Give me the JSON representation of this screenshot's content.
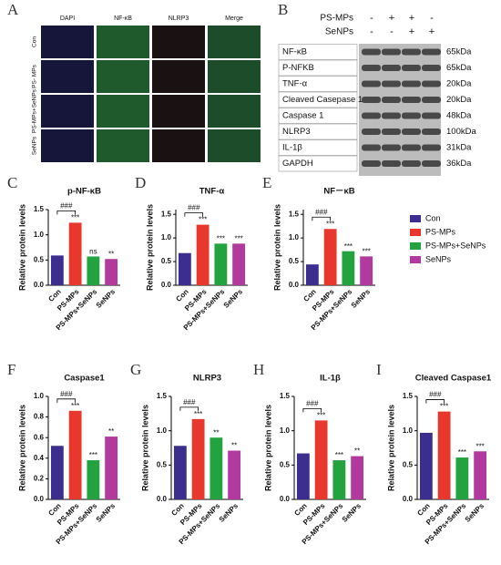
{
  "panel_a": {
    "label": "A",
    "columns": [
      "DAPI",
      "NF-κB",
      "NLRP3",
      "Merge"
    ],
    "rows": [
      "Con",
      "PS- MPs",
      "PS-MPs+SeNPs",
      "SeNPs"
    ]
  },
  "panel_b": {
    "label": "B",
    "treatments": [
      {
        "name": "PS-MPs",
        "signs": [
          "-",
          "+",
          "+",
          "-"
        ]
      },
      {
        "name": "SeNPs",
        "signs": [
          "-",
          "-",
          "+",
          "+"
        ]
      }
    ],
    "proteins": [
      {
        "name": "NF-κB",
        "size": "65kDa"
      },
      {
        "name": "P-NFKB",
        "size": "65kDa"
      },
      {
        "name": "TNF-α",
        "size": "20kDa"
      },
      {
        "name": "Cleaved Casepase 1",
        "size": "20kDa"
      },
      {
        "name": "Caspase 1",
        "size": "48kDa"
      },
      {
        "name": "NLRP3",
        "size": "100kDa"
      },
      {
        "name": "IL-1β",
        "size": "31kDa"
      },
      {
        "name": "GAPDH",
        "size": "36kDa"
      }
    ]
  },
  "chart_data": [
    {
      "type": "bar",
      "panel": "C",
      "title": "p-NF-κB",
      "y_label": "Relative protein levels",
      "categories": [
        "Con",
        "PS-MPs",
        "PS-MPs+SeNPs",
        "SeNPs"
      ],
      "values": [
        0.59,
        1.24,
        0.57,
        0.52
      ],
      "colors": [
        "#3b2e8e",
        "#e8372c",
        "#22a33f",
        "#b23a9f"
      ],
      "significance": [
        null,
        "***",
        "ns",
        "**"
      ],
      "comparison": "###",
      "ylim": [
        0,
        1.5
      ],
      "yticks": [
        {
          "value": 0,
          "label": "0.0"
        },
        {
          "value": 0.5,
          "label": "0.5"
        },
        {
          "value": 1,
          "label": "1.0"
        },
        {
          "value": 1.5,
          "label": "1.5"
        }
      ],
      "legend": false
    },
    {
      "type": "bar",
      "panel": "D",
      "title": "TNF-α",
      "y_label": "Relative protein levels",
      "categories": [
        "Con",
        "PS-MPs",
        "PS-MPs+SeNPs",
        "SeNPs"
      ],
      "values": [
        0.68,
        1.28,
        0.88,
        0.88
      ],
      "colors": [
        "#3b2e8e",
        "#e8372c",
        "#22a33f",
        "#b23a9f"
      ],
      "significance": [
        null,
        "***",
        "***",
        "***"
      ],
      "comparison": "###",
      "ylim": [
        0,
        1.6
      ],
      "yticks": [
        {
          "value": 0,
          "label": "0.0"
        },
        {
          "value": 0.5,
          "label": "0.5"
        },
        {
          "value": 1,
          "label": "1.0"
        },
        {
          "value": 1.5,
          "label": "1.5"
        }
      ],
      "legend": false
    },
    {
      "type": "bar",
      "panel": "E",
      "title": "NF－κB",
      "y_label": "Relative protein levels",
      "categories": [
        "Con",
        "PS-MPs",
        "PS-MPs+SeNPs",
        "SeNPs"
      ],
      "values": [
        0.44,
        1.19,
        0.72,
        0.61
      ],
      "colors": [
        "#3b2e8e",
        "#e8372c",
        "#22a33f",
        "#b23a9f"
      ],
      "significance": [
        null,
        "***",
        "***",
        "***"
      ],
      "comparison": "###",
      "ylim": [
        0,
        1.6
      ],
      "yticks": [
        {
          "value": 0,
          "label": "0.0"
        },
        {
          "value": 0.5,
          "label": "0.5"
        },
        {
          "value": 1,
          "label": "1.0"
        },
        {
          "value": 1.5,
          "label": "1.5"
        }
      ],
      "legend": true
    },
    {
      "type": "bar",
      "panel": "F",
      "title": "Caspase1",
      "y_label": "Relative protein levels",
      "categories": [
        "Con",
        "PS-MPs",
        "PS-MPs+SeNPs",
        "SeNPs"
      ],
      "values": [
        0.52,
        0.86,
        0.38,
        0.61
      ],
      "colors": [
        "#3b2e8e",
        "#e8372c",
        "#22a33f",
        "#b23a9f"
      ],
      "significance": [
        null,
        "***",
        "***",
        "**"
      ],
      "comparison": "###",
      "ylim": [
        0,
        1.0
      ],
      "yticks": [
        {
          "value": 0,
          "label": "0.0"
        },
        {
          "value": 0.2,
          "label": "0.2"
        },
        {
          "value": 0.4,
          "label": "0.4"
        },
        {
          "value": 0.6,
          "label": "0.6"
        },
        {
          "value": 0.8,
          "label": "0.8"
        },
        {
          "value": 1,
          "label": "1.0"
        }
      ],
      "legend": false
    },
    {
      "type": "bar",
      "panel": "G",
      "title": "NLRP3",
      "y_label": "Relative protein levels",
      "categories": [
        "Con",
        "PS-MPs",
        "PS-MPs+SeNPs",
        "SeNPs"
      ],
      "values": [
        0.78,
        1.17,
        0.9,
        0.71
      ],
      "colors": [
        "#3b2e8e",
        "#e8372c",
        "#22a33f",
        "#b23a9f"
      ],
      "significance": [
        null,
        "***",
        "**",
        "**"
      ],
      "comparison": "###",
      "ylim": [
        0,
        1.5
      ],
      "yticks": [
        {
          "value": 0,
          "label": "0.0"
        },
        {
          "value": 0.5,
          "label": "0.5"
        },
        {
          "value": 1,
          "label": "1.0"
        },
        {
          "value": 1.5,
          "label": "1.5"
        }
      ],
      "legend": false
    },
    {
      "type": "bar",
      "panel": "H",
      "title": "IL-1β",
      "y_label": "Relative protein levels",
      "categories": [
        "Con",
        "PS-MPs",
        "PS-MPs+SeNPs",
        "SeNPs"
      ],
      "values": [
        0.67,
        1.15,
        0.57,
        0.63
      ],
      "colors": [
        "#3b2e8e",
        "#e8372c",
        "#22a33f",
        "#b23a9f"
      ],
      "significance": [
        null,
        "***",
        "***",
        "**"
      ],
      "comparison": "###",
      "ylim": [
        0,
        1.5
      ],
      "yticks": [
        {
          "value": 0,
          "label": "0.0"
        },
        {
          "value": 0.5,
          "label": "0.5"
        },
        {
          "value": 1,
          "label": "1.0"
        },
        {
          "value": 1.5,
          "label": "1.5"
        }
      ],
      "legend": false
    },
    {
      "type": "bar",
      "panel": "I",
      "title": "Cleaved Caspase1",
      "y_label": "Relative protein levels",
      "categories": [
        "Con",
        "PS-MPs",
        "PS-MPs+SeNPs",
        "SeNPs"
      ],
      "values": [
        0.97,
        1.28,
        0.61,
        0.7
      ],
      "colors": [
        "#3b2e8e",
        "#e8372c",
        "#22a33f",
        "#b23a9f"
      ],
      "significance": [
        null,
        "***",
        "***",
        "***"
      ],
      "comparison": "###",
      "ylim": [
        0,
        1.5
      ],
      "yticks": [
        {
          "value": 0,
          "label": "0.0"
        },
        {
          "value": 0.5,
          "label": "0.5"
        },
        {
          "value": 1,
          "label": "1.0"
        },
        {
          "value": 1.5,
          "label": "1.5"
        }
      ],
      "legend": false
    }
  ]
}
